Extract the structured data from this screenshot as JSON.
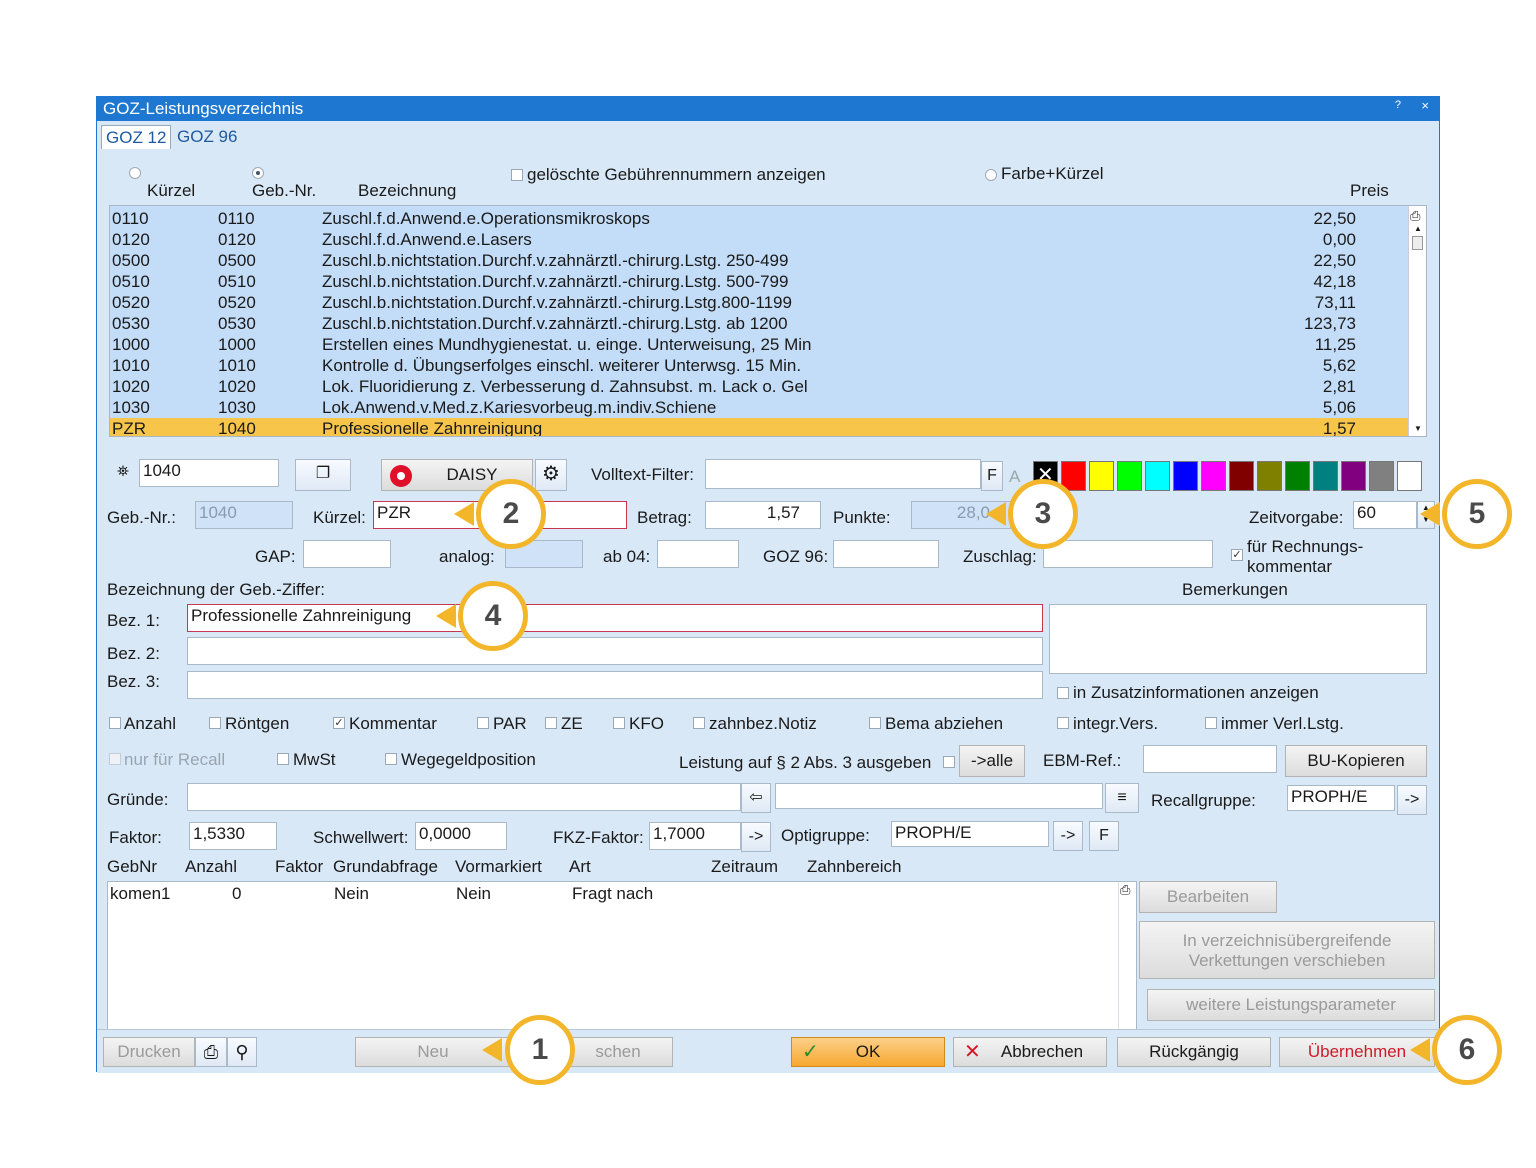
{
  "window": {
    "title": "GOZ-Leistungsverzeichnis",
    "help": "?",
    "close": "×"
  },
  "tabs": [
    "GOZ 12",
    "GOZ 96"
  ],
  "filters": {
    "show_deleted": "gelöschte Gebührennummern anzeigen",
    "color_short": "Farbe+Kürzel"
  },
  "list": {
    "headers": {
      "kuerzel": "Kürzel",
      "gebnr": "Geb.-Nr.",
      "bez": "Bezeichnung",
      "preis": "Preis"
    },
    "rows": [
      {
        "k": "0110",
        "n": "0110",
        "b": "Zuschl.f.d.Anwend.e.Operationsmikroskops",
        "p": "22,50"
      },
      {
        "k": "0120",
        "n": "0120",
        "b": "Zuschl.f.d.Anwend.e.Lasers",
        "p": "0,00"
      },
      {
        "k": "0500",
        "n": "0500",
        "b": "Zuschl.b.nichtstation.Durchf.v.zahnärztl.-chirurg.Lstg. 250-499",
        "p": "22,50"
      },
      {
        "k": "0510",
        "n": "0510",
        "b": "Zuschl.b.nichtstation.Durchf.v.zahnärztl.-chirurg.Lstg. 500-799",
        "p": "42,18"
      },
      {
        "k": "0520",
        "n": "0520",
        "b": "Zuschl.b.nichtstation.Durchf.v.zahnärztl.-chirurg.Lstg.800-1199",
        "p": "73,11"
      },
      {
        "k": "0530",
        "n": "0530",
        "b": "Zuschl.b.nichtstation.Durchf.v.zahnärztl.-chirurg.Lstg. ab 1200",
        "p": "123,73"
      },
      {
        "k": "1000",
        "n": "1000",
        "b": "Erstellen eines Mundhygienestat. u. einge. Unterweisung, 25 Min",
        "p": "11,25"
      },
      {
        "k": "1010",
        "n": "1010",
        "b": "Kontrolle d. Übungserfolges einschl. weiterer Unterwsg. 15 Min.",
        "p": "5,62"
      },
      {
        "k": "1020",
        "n": "1020",
        "b": "Lok. Fluoridierung z. Verbesserung d. Zahnsubst. m. Lack o. Gel",
        "p": "2,81"
      },
      {
        "k": "1030",
        "n": "1030",
        "b": "Lok.Anwend.v.Med.z.Kariesvorbeug.m.indiv.Schiene",
        "p": "5,06"
      },
      {
        "k": "PZR",
        "n": "1040",
        "b": "Professionelle Zahnreinigung",
        "p": "1,57"
      }
    ]
  },
  "search": {
    "value": "1040",
    "daisy": "DAISY",
    "volltext_label": "Volltext-Filter:",
    "volltext_value": "",
    "f": "F",
    "a": "A"
  },
  "colors": [
    "#000000",
    "#ff0000",
    "#ffff00",
    "#00ff00",
    "#00ffff",
    "#0000ff",
    "#ff00ff",
    "#800000",
    "#808000",
    "#008000",
    "#008080",
    "#800080",
    "#808080",
    "#ffffff"
  ],
  "fields": {
    "gebnr_label": "Geb.-Nr.:",
    "gebnr_value": "1040",
    "kuerzel_label": "Kürzel:",
    "kuerzel_value": "PZR",
    "betrag_label": "Betrag:",
    "betrag_value": "1,57",
    "punkte_label": "Punkte:",
    "punkte_value": "28,0",
    "zeit_label": "Zeitvorgabe:",
    "zeit_value": "60",
    "gap_label": "GAP:",
    "analog_label": "analog:",
    "ab04_label": "ab 04:",
    "goz96_label": "GOZ 96:",
    "zuschlag_label": "Zuschlag:",
    "rechnung_label": "für Rechnungs-\nkommentar",
    "bez_header": "Bezeichnung der Geb.-Ziffer:",
    "bemerkungen": "Bemerkungen",
    "bez1_label": "Bez. 1:",
    "bez1_value": "Professionelle Zahnreinigung",
    "bez2_label": "Bez. 2:",
    "bez3_label": "Bez. 3:",
    "zusatz": "in Zusatzinformationen anzeigen"
  },
  "checks": {
    "anzahl": "Anzahl",
    "roentgen": "Röntgen",
    "kommentar": "Kommentar",
    "par": "PAR",
    "ze": "ZE",
    "kfo": "KFO",
    "notiz": "zahnbez.Notiz",
    "bema": "Bema abziehen",
    "integr": "integr.Vers.",
    "immer": "immer Verl.Lstg.",
    "recall": "nur für Recall",
    "mwst": "MwSt",
    "wegegeld": "Wegegeldposition",
    "leistung": "Leistung auf § 2 Abs. 3 ausgeben",
    "alle": "->alle",
    "ebm": "EBM-Ref.:",
    "bu": "BU-Kopieren"
  },
  "gruende": {
    "label": "Gründe:",
    "recall_label": "Recallgruppe:",
    "recall_value": "PROPH/E",
    "arrow": "->"
  },
  "faktor": {
    "label": "Faktor:",
    "value": "1,5330",
    "schwell_label": "Schwellwert:",
    "schwell_value": "0,0000",
    "fkz_label": "FKZ-Faktor:",
    "fkz_value": "1,7000",
    "opti_label": "Optigruppe:",
    "opti_value": "PROPH/E",
    "f": "F"
  },
  "komm": {
    "headers": [
      "GebNr",
      "Anzahl",
      "Faktor",
      "Grundabfrage",
      "Vormarkiert",
      "Art",
      "Zeitraum",
      "Zahnbereich"
    ],
    "row": {
      "gebnr": "komen1",
      "anzahl": "0",
      "grund": "Nein",
      "vorm": "Nein",
      "art": "Fragt nach"
    },
    "bearbeiten": "Bearbeiten",
    "verkettung": "In verzeichnisübergreifende\nVerkettungen verschieben",
    "weitere": "weitere Leistungsparameter"
  },
  "footer": {
    "drucken": "Drucken",
    "neu": "Neu",
    "loeschen": "schen",
    "ok": "OK",
    "abbrechen": "Abbrechen",
    "rueck": "Rückgängig",
    "uebernehmen": "Übernehmen"
  },
  "callouts": [
    "1",
    "2",
    "3",
    "4",
    "5",
    "6"
  ]
}
